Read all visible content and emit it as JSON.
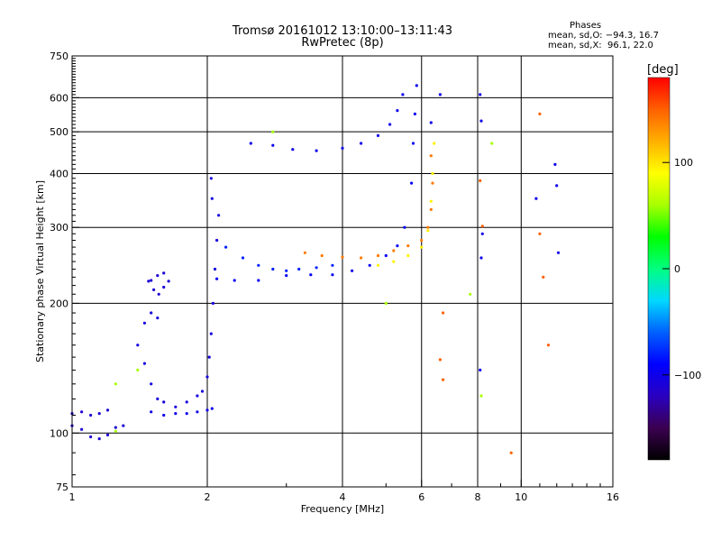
{
  "title": "Tromsø 20161012 13:10:00–13:11:43",
  "subtitle": "RwPretec (8p)",
  "phases": {
    "header": "Phases",
    "o_line": "mean, sd,O: −94.3, 16.7",
    "x_line": "mean, sd,X:  96.1, 22.0"
  },
  "colorbar": {
    "unit": "[deg]",
    "ticks": [
      "100",
      "0",
      "−100"
    ],
    "tick_values": [
      100,
      0,
      -100
    ],
    "range": [
      -180,
      180
    ],
    "palette": [
      "#000000",
      "#3b0050",
      "#2a00c0",
      "#0000ff",
      "#0060ff",
      "#00d8ff",
      "#00ff80",
      "#00ff00",
      "#a8ff00",
      "#ffff00",
      "#ffb000",
      "#ff6000",
      "#ff0000"
    ]
  },
  "chart_data": {
    "type": "scatter",
    "xlabel": "Frequency [MHz]",
    "ylabel": "Stationary phase Virtual Height [km]",
    "xscale": "log",
    "yscale": "log",
    "xlim": [
      1,
      16
    ],
    "ylim": [
      75,
      750
    ],
    "x_ticks": [
      1,
      2,
      4,
      6,
      8,
      10,
      16
    ],
    "y_ticks": [
      75,
      100,
      200,
      300,
      400,
      500,
      600,
      750
    ],
    "grid": true,
    "series": [
      {
        "color_value": -110,
        "points": [
          [
            1.0,
            104
          ],
          [
            1.05,
            102
          ],
          [
            1.1,
            98
          ],
          [
            1.15,
            97
          ],
          [
            1.2,
            99
          ],
          [
            1.25,
            103
          ],
          [
            1.3,
            104
          ],
          [
            1.0,
            111
          ],
          [
            1.05,
            112
          ],
          [
            1.1,
            110
          ],
          [
            1.15,
            111
          ],
          [
            1.2,
            113
          ]
        ]
      },
      {
        "color_value": -105,
        "points": [
          [
            1.45,
            180
          ],
          [
            1.5,
            190
          ],
          [
            1.55,
            185
          ],
          [
            1.4,
            160
          ],
          [
            1.45,
            145
          ],
          [
            1.5,
            130
          ],
          [
            1.55,
            120
          ],
          [
            1.6,
            118
          ],
          [
            1.7,
            115
          ],
          [
            1.8,
            118
          ],
          [
            1.9,
            122
          ],
          [
            1.95,
            125
          ],
          [
            2.0,
            135
          ],
          [
            2.02,
            150
          ],
          [
            2.04,
            170
          ],
          [
            2.06,
            200
          ],
          [
            2.08,
            240
          ],
          [
            2.1,
            280
          ],
          [
            2.12,
            320
          ],
          [
            2.05,
            350
          ],
          [
            2.04,
            390
          ]
        ]
      },
      {
        "color_value": -100,
        "points": [
          [
            1.5,
            112
          ],
          [
            1.6,
            110
          ],
          [
            1.7,
            111
          ],
          [
            1.8,
            111
          ],
          [
            1.9,
            112
          ],
          [
            2.0,
            113
          ],
          [
            2.05,
            114
          ]
        ]
      },
      {
        "color_value": -110,
        "points": [
          [
            1.48,
            225
          ],
          [
            1.52,
            215
          ],
          [
            1.56,
            210
          ],
          [
            1.6,
            218
          ],
          [
            1.64,
            225
          ],
          [
            1.6,
            235
          ],
          [
            1.55,
            232
          ],
          [
            1.5,
            226
          ]
        ]
      },
      {
        "color_value": -95,
        "points": [
          [
            2.1,
            228
          ],
          [
            2.3,
            226
          ],
          [
            2.6,
            226
          ],
          [
            3.0,
            232
          ],
          [
            3.4,
            233
          ],
          [
            3.8,
            233
          ],
          [
            4.2,
            238
          ],
          [
            4.6,
            245
          ],
          [
            5.0,
            258
          ],
          [
            5.3,
            272
          ],
          [
            5.5,
            300
          ],
          [
            5.7,
            380
          ],
          [
            5.75,
            470
          ],
          [
            5.8,
            550
          ],
          [
            5.85,
            640
          ]
        ]
      },
      {
        "color_value": -80,
        "points": [
          [
            2.2,
            270
          ],
          [
            2.4,
            255
          ],
          [
            2.6,
            245
          ],
          [
            2.8,
            240
          ],
          [
            3.0,
            238
          ],
          [
            3.2,
            240
          ],
          [
            3.5,
            242
          ],
          [
            3.8,
            245
          ]
        ]
      },
      {
        "color_value": -100,
        "points": [
          [
            2.5,
            470
          ],
          [
            2.8,
            465
          ],
          [
            3.1,
            455
          ],
          [
            3.5,
            452
          ],
          [
            4.0,
            458
          ],
          [
            4.4,
            470
          ],
          [
            4.8,
            490
          ],
          [
            5.1,
            520
          ],
          [
            5.3,
            560
          ],
          [
            5.45,
            610
          ]
        ]
      },
      {
        "color_value": 140,
        "points": [
          [
            3.3,
            262
          ],
          [
            3.6,
            258
          ],
          [
            4.0,
            256
          ],
          [
            4.4,
            255
          ],
          [
            4.8,
            258
          ],
          [
            5.2,
            265
          ],
          [
            5.6,
            272
          ],
          [
            6.0,
            280
          ],
          [
            6.2,
            300
          ],
          [
            6.3,
            330
          ],
          [
            6.35,
            380
          ],
          [
            6.3,
            440
          ]
        ]
      },
      {
        "color_value": 95,
        "points": [
          [
            4.8,
            245
          ],
          [
            5.2,
            250
          ],
          [
            5.6,
            258
          ],
          [
            6.0,
            270
          ],
          [
            6.2,
            295
          ],
          [
            6.3,
            345
          ],
          [
            6.35,
            400
          ],
          [
            6.4,
            470
          ]
        ]
      },
      {
        "color_value": -100,
        "points": [
          [
            6.6,
            610
          ],
          [
            6.3,
            525
          ],
          [
            8.1,
            610
          ],
          [
            8.15,
            530
          ],
          [
            8.2,
            290
          ],
          [
            8.15,
            255
          ],
          [
            8.1,
            140
          ],
          [
            10.8,
            350
          ],
          [
            11.9,
            420
          ],
          [
            12.0,
            375
          ],
          [
            12.1,
            262
          ]
        ]
      },
      {
        "color_value": 150,
        "points": [
          [
            6.7,
            190
          ],
          [
            6.6,
            148
          ],
          [
            6.7,
            133
          ],
          [
            8.1,
            385
          ],
          [
            8.2,
            302
          ],
          [
            11.0,
            550
          ],
          [
            11.0,
            290
          ],
          [
            11.2,
            230
          ],
          [
            9.5,
            90
          ],
          [
            11.5,
            160
          ]
        ]
      },
      {
        "color_value": 60,
        "points": [
          [
            2.8,
            500
          ],
          [
            1.25,
            130
          ],
          [
            1.4,
            140
          ],
          [
            8.15,
            122
          ],
          [
            8.6,
            470
          ],
          [
            5.0,
            200
          ],
          [
            7.7,
            210
          ],
          [
            1.25,
            101
          ]
        ]
      }
    ]
  }
}
